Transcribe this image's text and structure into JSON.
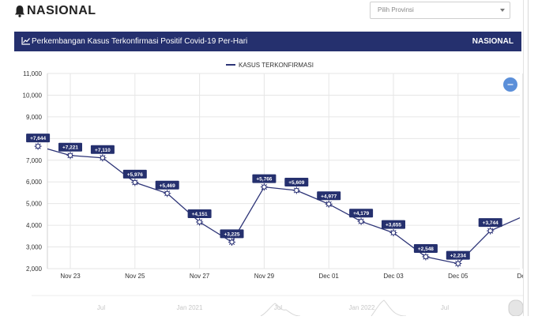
{
  "header": {
    "brand": "NASIONAL",
    "province_select": {
      "value": "Pilih Provinsi"
    }
  },
  "panel": {
    "title": "Perkembangan Kasus Terkonfirmasi Positif Covid-19 Per-Hari",
    "scope": "NASIONAL"
  },
  "chart_data": {
    "type": "line",
    "title": "",
    "xlabel": "",
    "ylabel": "",
    "legend": {
      "position": "top-center",
      "entries": [
        "KASUS TERKONFIRMASI"
      ]
    },
    "grid": true,
    "ylim": [
      2000,
      11000
    ],
    "y_ticks": [
      "2,000",
      "3,000",
      "4,000",
      "5,000",
      "6,000",
      "7,000",
      "8,000",
      "9,000",
      "10,000",
      "11,000"
    ],
    "x_tick_labels": [
      "Nov 23",
      "Nov 25",
      "Nov 27",
      "Nov 29",
      "Dec 01",
      "Dec 03",
      "Dec 05",
      "Dec"
    ],
    "series": [
      {
        "name": "KASUS TERKONFIRMASI",
        "color": "#2d3477",
        "points": [
          {
            "x": "2020-11-21",
            "y": 6800,
            "label": ""
          },
          {
            "x": "2020-11-22",
            "y": 7644,
            "label": "+7,644"
          },
          {
            "x": "2020-11-23",
            "y": 7221,
            "label": "+7,221"
          },
          {
            "x": "2020-11-24",
            "y": 7110,
            "label": "+7,110"
          },
          {
            "x": "2020-11-25",
            "y": 5976,
            "label": "+5,976"
          },
          {
            "x": "2020-11-26",
            "y": 5469,
            "label": "+5,469"
          },
          {
            "x": "2020-11-27",
            "y": 4151,
            "label": "+4,151"
          },
          {
            "x": "2020-11-28",
            "y": 3225,
            "label": "+3,225"
          },
          {
            "x": "2020-11-29",
            "y": 5766,
            "label": "+5,766"
          },
          {
            "x": "2020-11-30",
            "y": 5609,
            "label": "+5,609"
          },
          {
            "x": "2020-12-01",
            "y": 4977,
            "label": "+4,977"
          },
          {
            "x": "2020-12-02",
            "y": 4179,
            "label": "+4,179"
          },
          {
            "x": "2020-12-03",
            "y": 3655,
            "label": "+3,655"
          },
          {
            "x": "2020-12-04",
            "y": 2548,
            "label": "+2,548"
          },
          {
            "x": "2020-12-05",
            "y": 2234,
            "label": "+2,234"
          },
          {
            "x": "2020-12-06",
            "y": 3744,
            "label": "+3,744"
          },
          {
            "x": "2020-12-07",
            "y": 4400,
            "label": ""
          }
        ]
      }
    ],
    "navigator": {
      "labels": [
        "Jul",
        "Jan 2021",
        "Jul",
        "Jan 2022",
        "Jul"
      ]
    }
  },
  "colors": {
    "brand": "#25306e",
    "accent": "#5b8fd9",
    "line": "#2d3477"
  }
}
